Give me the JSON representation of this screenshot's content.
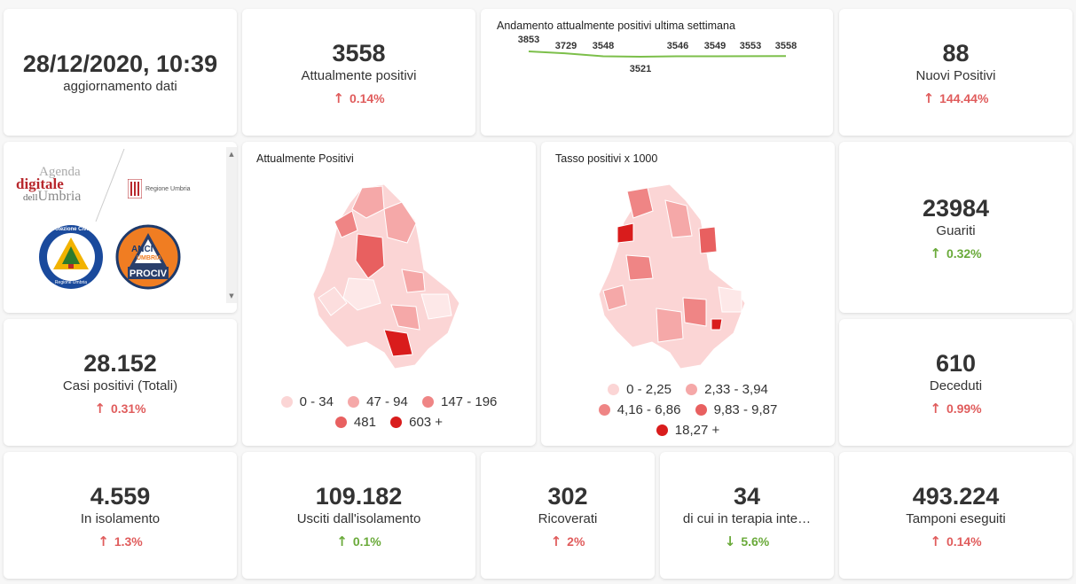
{
  "header": {
    "update_time": "28/12/2020, 10:39",
    "update_label": "aggiornamento dati"
  },
  "kpis": {
    "attualmente_positivi": {
      "value": "3558",
      "label": "Attualmente positivi",
      "delta": "0.14%",
      "direction": "up"
    },
    "nuovi_positivi": {
      "value": "88",
      "label": "Nuovi Positivi",
      "delta": "144.44%",
      "direction": "up"
    },
    "guariti": {
      "value": "23984",
      "label": "Guariti",
      "delta": "0.32%",
      "direction": "up"
    },
    "casi_totali": {
      "value": "28.152",
      "label": "Casi positivi (Totali)",
      "delta": "0.31%",
      "direction": "up"
    },
    "deceduti": {
      "value": "610",
      "label": "Deceduti",
      "delta": "0.99%",
      "direction": "up"
    },
    "isolamento": {
      "value": "4.559",
      "label": "In isolamento",
      "delta": "1.3%",
      "direction": "up"
    },
    "usciti": {
      "value": "109.182",
      "label": "Usciti dall'isolamento",
      "delta": "0.1%",
      "direction": "up"
    },
    "ricoverati": {
      "value": "302",
      "label": "Ricoverati",
      "delta": "2%",
      "direction": "up"
    },
    "terapia": {
      "value": "34",
      "label": "di cui in terapia inte…",
      "delta": "5.6%",
      "direction": "down"
    },
    "tamponi": {
      "value": "493.224",
      "label": "Tamponi eseguiti",
      "delta": "0.14%",
      "direction": "up"
    }
  },
  "logos": {
    "agenda_line1": "Agenda",
    "agenda_line2": "digitale",
    "agenda_line3a": "dell",
    "agenda_line3b": "Umbria",
    "regione": "Regione Umbria",
    "protezione_top": "Protezione Civile",
    "protezione_bottom": "Regione Umbria",
    "anci_line1": "ANCI",
    "anci_line2": "UMBRIA",
    "anci_line3": "PROCIV"
  },
  "map1": {
    "title": "Attualmente Positivi",
    "legend": [
      {
        "label": "0 - 34",
        "color": "#fbd5d5"
      },
      {
        "label": "47 - 94",
        "color": "#f5a8a8"
      },
      {
        "label": "147 - 196",
        "color": "#ef8585"
      },
      {
        "label": "481",
        "color": "#e86060"
      },
      {
        "label": "603 +",
        "color": "#d91c1c"
      }
    ]
  },
  "map2": {
    "title": "Tasso positivi x 1000",
    "legend": [
      {
        "label": "0 - 2,25",
        "color": "#fbd5d5"
      },
      {
        "label": "2,33 - 3,94",
        "color": "#f5a8a8"
      },
      {
        "label": "4,16 - 6,86",
        "color": "#ef8585"
      },
      {
        "label": "9,83 - 9,87",
        "color": "#e86060"
      },
      {
        "label": "18,27 +",
        "color": "#d91c1c"
      }
    ]
  },
  "chart_data": {
    "type": "line",
    "title": "Andamento attualmente positivi ultima settimana",
    "values": [
      3853,
      3729,
      3548,
      3521,
      3546,
      3549,
      3553,
      3558
    ],
    "labels": [
      "3853",
      "3729",
      "3548",
      "3521",
      "3546",
      "3549",
      "3553",
      "3558"
    ],
    "color": "#7cbf4a"
  },
  "colors": {
    "up_red": "#e05c5c",
    "up_green": "#6aaa3a",
    "line": "#7cbf4a"
  }
}
